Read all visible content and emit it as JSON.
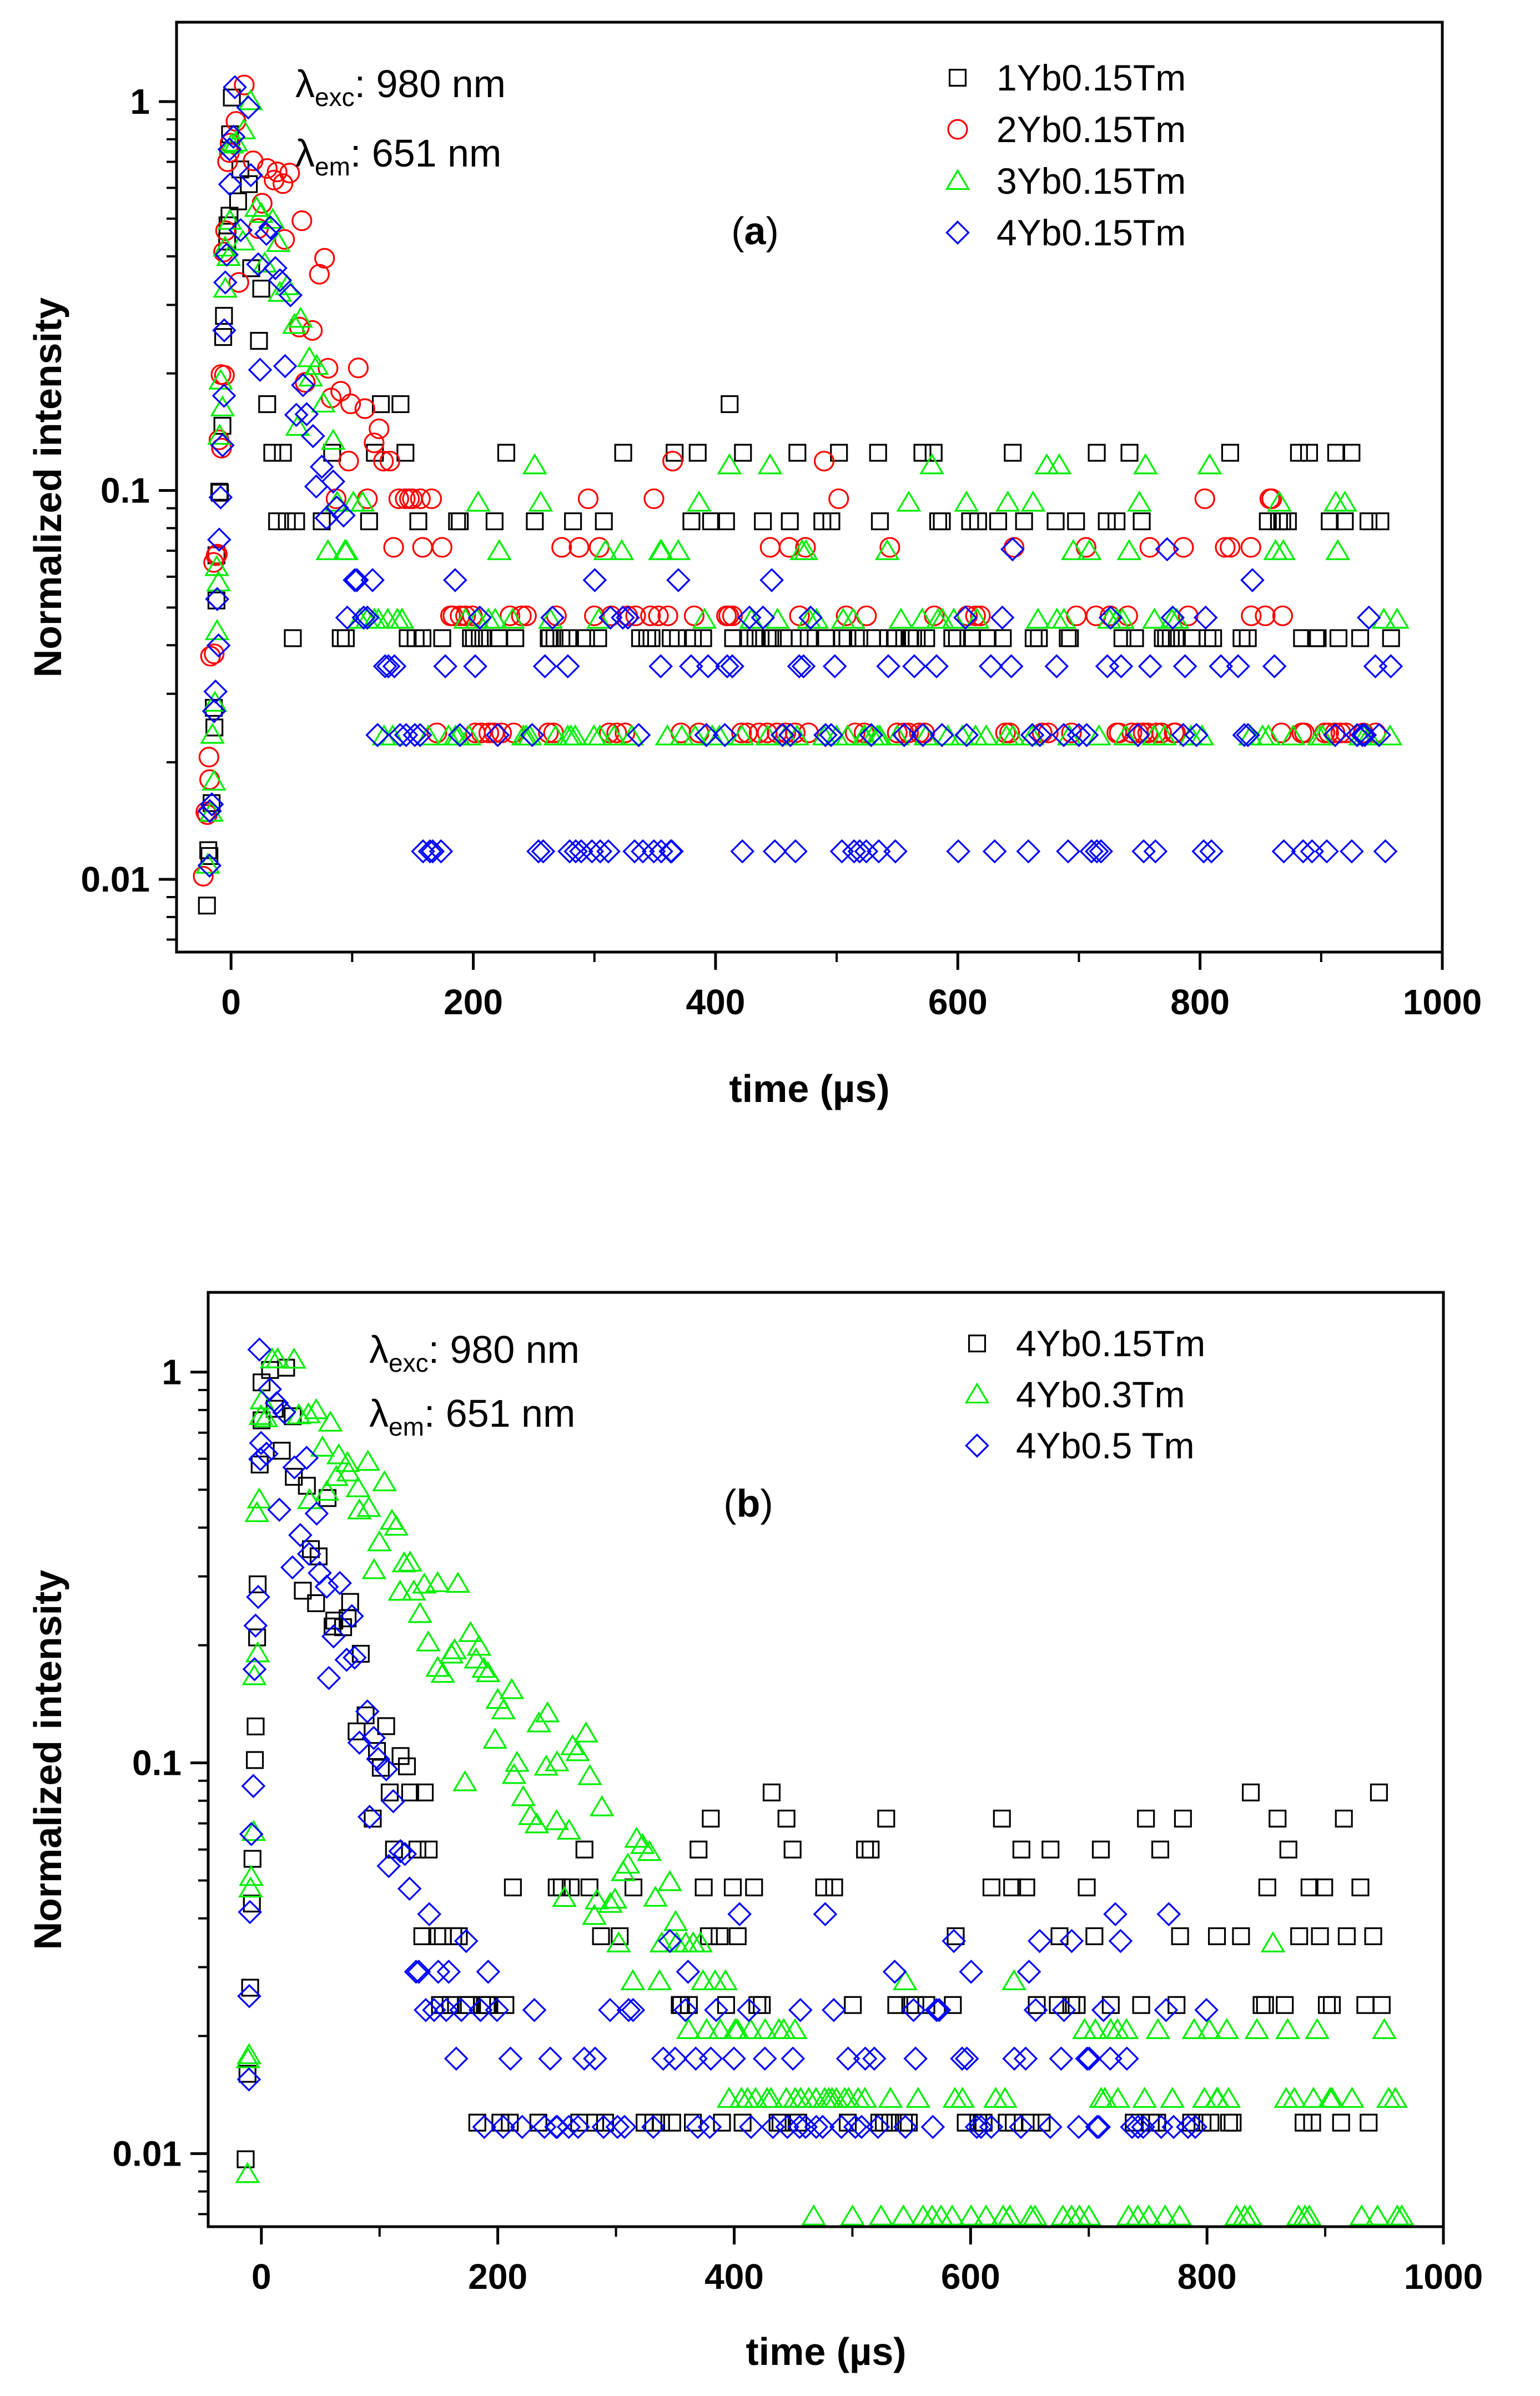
{
  "chart_data": [
    {
      "panel": "a",
      "type": "scatter",
      "yscale": "log",
      "xlabel": "time (µs)",
      "ylabel": "Normalized intensity",
      "xlim": [
        -45,
        1000
      ],
      "ylim": [
        0.0065,
        1.6
      ],
      "xticks": [
        0,
        200,
        400,
        600,
        800,
        1000
      ],
      "xtick_labels": [
        "0",
        "200",
        "400",
        "600",
        "800",
        "1000"
      ],
      "yticks": [
        0.01,
        0.1,
        1
      ],
      "ytick_labels": [
        "0.01",
        "0.1",
        "1"
      ],
      "annotation": {
        "lambda": "λ",
        "exc_sub": "exc",
        "exc_value": ": 980 nm",
        "em_sub": "em",
        "em_value": ": 651 nm"
      },
      "panel_label": {
        "open": "(",
        "letter": "a",
        "close": ")"
      },
      "legend_position": "top-right",
      "series": [
        {
          "name": "1Yb0.15Tm",
          "marker": "square",
          "color": "#000000",
          "peak": 1.0,
          "tau": 18,
          "rise": 12,
          "levels": [
            0.0417,
            0.0833,
            0.125,
            0.1667
          ],
          "xmax": 965
        },
        {
          "name": "2Yb0.15Tm",
          "marker": "circle",
          "color": "#ff0000",
          "peak": 1.0,
          "tau": 60,
          "rise": 14,
          "levels": [
            0.0238,
            0.0476,
            0.0714,
            0.0952,
            0.119
          ],
          "xmax": 950
        },
        {
          "name": "3Yb0.15Tm",
          "marker": "triangle",
          "color": "#00ee00",
          "peak": 1.0,
          "tau": 40,
          "rise": 12,
          "levels": [
            0.0233,
            0.0465,
            0.0698,
            0.093,
            0.116
          ],
          "xmax": 965
        },
        {
          "name": "4Yb0.15Tm",
          "marker": "diamond",
          "color": "#0000ff",
          "peak": 0.92,
          "tau": 38,
          "rise": 12,
          "levels": [
            0.0118,
            0.0235,
            0.0353,
            0.0471,
            0.0588,
            0.0706
          ],
          "xmax": 960
        }
      ]
    },
    {
      "panel": "b",
      "type": "scatter",
      "yscale": "log",
      "xlabel": "time (µs)",
      "ylabel": "Normalized intensity",
      "xlim": [
        -45,
        1000
      ],
      "ylim": [
        0.0065,
        1.6
      ],
      "xticks": [
        0,
        200,
        400,
        600,
        800,
        1000
      ],
      "xtick_labels": [
        "0",
        "200",
        "400",
        "600",
        "800",
        "1000"
      ],
      "yticks": [
        0.01,
        0.1,
        1
      ],
      "ytick_labels": [
        "0.01",
        "0.1",
        "1"
      ],
      "annotation": {
        "lambda": "λ",
        "exc_sub": "exc",
        "exc_value": ": 980 nm",
        "em_sub": "em",
        "em_value": ": 651 nm"
      },
      "panel_label": {
        "open": "(",
        "letter": "b",
        "close": ")"
      },
      "legend_position": "top-right",
      "series": [
        {
          "name": "4Yb0.15Tm",
          "marker": "square",
          "color": "#000000",
          "peak": 0.95,
          "tau": 48,
          "rise": 8,
          "levels": [
            0.012,
            0.024,
            0.036,
            0.048,
            0.06,
            0.072,
            0.084
          ],
          "xmax": 960
        },
        {
          "name": "4Yb0.3Tm",
          "marker": "triangle",
          "color": "#00ee00",
          "peak": 1.0,
          "tau": 105,
          "rise": 8,
          "levels": [
            0.0069,
            0.0138,
            0.0207,
            0.0276,
            0.0345
          ],
          "xmax": 970
        },
        {
          "name": "4Yb0.5 Tm",
          "marker": "diamond",
          "color": "#0000ff",
          "peak": 0.97,
          "tau": 42,
          "rise": 8,
          "levels": [
            0.0117,
            0.0175,
            0.0233,
            0.0292,
            0.035,
            0.041
          ],
          "xmax": 800
        }
      ]
    }
  ]
}
